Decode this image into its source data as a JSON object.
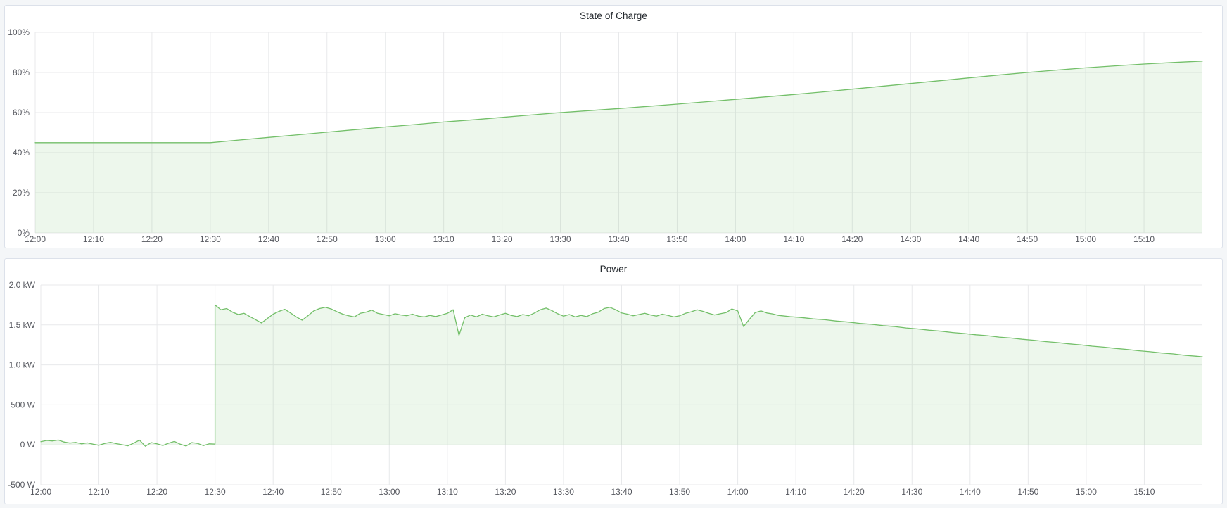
{
  "colors": {
    "page_bg": "#f4f6f8",
    "panel_bg": "#ffffff",
    "panel_border": "#dce1ea",
    "grid": "#e8e9eb",
    "tick_text": "#56585f",
    "title_text": "#24292e",
    "series_green": "#73bf69"
  },
  "panels": [
    {
      "title": "State of Charge"
    },
    {
      "title": "Power"
    }
  ],
  "chart_data": [
    {
      "type": "area",
      "title": "State of Charge",
      "legend": "none",
      "grid": true,
      "x_axis": {
        "start": "11:50",
        "end": "15:10",
        "tick_interval_min": 10,
        "tick_labels": [
          "12:00",
          "12:10",
          "12:20",
          "12:30",
          "12:40",
          "12:50",
          "13:00",
          "13:10",
          "13:20",
          "13:30",
          "13:40",
          "13:50",
          "14:00",
          "14:10",
          "14:20",
          "14:30",
          "14:40",
          "14:50",
          "15:00",
          "15:10"
        ]
      },
      "y_axis": {
        "min": 0,
        "max": 100,
        "unit": "%",
        "ticks": [
          {
            "v": 0,
            "label": "0%"
          },
          {
            "v": 20,
            "label": "20%"
          },
          {
            "v": 40,
            "label": "40%"
          },
          {
            "v": 60,
            "label": "60%"
          },
          {
            "v": 80,
            "label": "80%"
          },
          {
            "v": 100,
            "label": "100%"
          }
        ]
      },
      "series": [
        {
          "name": "State of Charge",
          "color": "#73bf69",
          "fill_opacity": 0.13,
          "points": [
            [
              0,
              45
            ],
            [
              5,
              45
            ],
            [
              10,
              45
            ],
            [
              15,
              45
            ],
            [
              20,
              45
            ],
            [
              25,
              45
            ],
            [
              30,
              45
            ],
            [
              35,
              46.3
            ],
            [
              40,
              47.6
            ],
            [
              45,
              48.9
            ],
            [
              50,
              50.2
            ],
            [
              55,
              51.5
            ],
            [
              60,
              52.8
            ],
            [
              65,
              54
            ],
            [
              70,
              55.3
            ],
            [
              75,
              56.4
            ],
            [
              80,
              57.6
            ],
            [
              85,
              58.8
            ],
            [
              90,
              60
            ],
            [
              95,
              61
            ],
            [
              100,
              62
            ],
            [
              105,
              63.1
            ],
            [
              110,
              64.2
            ],
            [
              115,
              65.4
            ],
            [
              120,
              66.6
            ],
            [
              125,
              67.8
            ],
            [
              130,
              69
            ],
            [
              135,
              70.3
            ],
            [
              140,
              71.7
            ],
            [
              145,
              73.1
            ],
            [
              150,
              74.5
            ],
            [
              155,
              75.9
            ],
            [
              160,
              77.3
            ],
            [
              165,
              78.7
            ],
            [
              170,
              80
            ],
            [
              175,
              81.2
            ],
            [
              180,
              82.3
            ],
            [
              185,
              83.3
            ],
            [
              190,
              84.2
            ],
            [
              195,
              85
            ],
            [
              200,
              85.7
            ]
          ]
        }
      ]
    },
    {
      "type": "area",
      "title": "Power",
      "legend": "none",
      "grid": true,
      "x_axis": {
        "start": "11:50",
        "end": "15:10",
        "tick_interval_min": 10,
        "tick_labels": [
          "12:00",
          "12:10",
          "12:20",
          "12:30",
          "12:40",
          "12:50",
          "13:00",
          "13:10",
          "13:20",
          "13:30",
          "13:40",
          "13:50",
          "14:00",
          "14:10",
          "14:20",
          "14:30",
          "14:40",
          "14:50",
          "15:00",
          "15:10"
        ]
      },
      "y_axis": {
        "min": -500,
        "max": 2000,
        "unit": "W",
        "ticks": [
          {
            "v": -500,
            "label": "-500 W"
          },
          {
            "v": 0,
            "label": "0 W"
          },
          {
            "v": 500,
            "label": "500 W"
          },
          {
            "v": 1000,
            "label": "1.0 kW"
          },
          {
            "v": 1500,
            "label": "1.5 kW"
          },
          {
            "v": 2000,
            "label": "2.0 kW"
          }
        ]
      },
      "series": [
        {
          "name": "Power",
          "color": "#73bf69",
          "fill_opacity": 0.13,
          "points": [
            [
              0,
              40
            ],
            [
              1,
              55
            ],
            [
              2,
              48
            ],
            [
              3,
              60
            ],
            [
              4,
              35
            ],
            [
              5,
              22
            ],
            [
              6,
              30
            ],
            [
              7,
              12
            ],
            [
              8,
              25
            ],
            [
              9,
              8
            ],
            [
              10,
              -5
            ],
            [
              11,
              18
            ],
            [
              12,
              32
            ],
            [
              13,
              15
            ],
            [
              14,
              2
            ],
            [
              15,
              -12
            ],
            [
              16,
              22
            ],
            [
              17,
              58
            ],
            [
              18,
              -18
            ],
            [
              19,
              28
            ],
            [
              20,
              12
            ],
            [
              21,
              -8
            ],
            [
              22,
              20
            ],
            [
              23,
              42
            ],
            [
              24,
              8
            ],
            [
              25,
              -15
            ],
            [
              26,
              28
            ],
            [
              27,
              18
            ],
            [
              28,
              -10
            ],
            [
              29,
              12
            ],
            [
              30,
              10
            ],
            [
              30,
              1750
            ],
            [
              31,
              1690
            ],
            [
              32,
              1705
            ],
            [
              33,
              1660
            ],
            [
              34,
              1630
            ],
            [
              35,
              1645
            ],
            [
              36,
              1605
            ],
            [
              37,
              1565
            ],
            [
              38,
              1525
            ],
            [
              39,
              1580
            ],
            [
              40,
              1635
            ],
            [
              41,
              1670
            ],
            [
              42,
              1695
            ],
            [
              43,
              1650
            ],
            [
              44,
              1600
            ],
            [
              45,
              1560
            ],
            [
              46,
              1615
            ],
            [
              47,
              1675
            ],
            [
              48,
              1705
            ],
            [
              49,
              1720
            ],
            [
              50,
              1700
            ],
            [
              51,
              1665
            ],
            [
              52,
              1635
            ],
            [
              53,
              1615
            ],
            [
              54,
              1600
            ],
            [
              55,
              1645
            ],
            [
              56,
              1660
            ],
            [
              57,
              1685
            ],
            [
              58,
              1645
            ],
            [
              59,
              1630
            ],
            [
              60,
              1615
            ],
            [
              61,
              1640
            ],
            [
              62,
              1625
            ],
            [
              63,
              1615
            ],
            [
              64,
              1635
            ],
            [
              65,
              1610
            ],
            [
              66,
              1600
            ],
            [
              67,
              1620
            ],
            [
              68,
              1605
            ],
            [
              69,
              1625
            ],
            [
              70,
              1645
            ],
            [
              71,
              1690
            ],
            [
              72,
              1370
            ],
            [
              73,
              1590
            ],
            [
              74,
              1625
            ],
            [
              75,
              1600
            ],
            [
              76,
              1635
            ],
            [
              77,
              1615
            ],
            [
              78,
              1600
            ],
            [
              79,
              1625
            ],
            [
              80,
              1645
            ],
            [
              81,
              1620
            ],
            [
              82,
              1605
            ],
            [
              83,
              1630
            ],
            [
              84,
              1615
            ],
            [
              85,
              1650
            ],
            [
              86,
              1690
            ],
            [
              87,
              1710
            ],
            [
              88,
              1680
            ],
            [
              89,
              1640
            ],
            [
              90,
              1610
            ],
            [
              91,
              1630
            ],
            [
              92,
              1600
            ],
            [
              93,
              1620
            ],
            [
              94,
              1605
            ],
            [
              95,
              1640
            ],
            [
              96,
              1660
            ],
            [
              97,
              1705
            ],
            [
              98,
              1720
            ],
            [
              99,
              1690
            ],
            [
              100,
              1650
            ],
            [
              101,
              1635
            ],
            [
              102,
              1615
            ],
            [
              103,
              1630
            ],
            [
              104,
              1645
            ],
            [
              105,
              1625
            ],
            [
              106,
              1610
            ],
            [
              107,
              1635
            ],
            [
              108,
              1620
            ],
            [
              109,
              1600
            ],
            [
              110,
              1615
            ],
            [
              111,
              1645
            ],
            [
              112,
              1665
            ],
            [
              113,
              1690
            ],
            [
              114,
              1670
            ],
            [
              115,
              1645
            ],
            [
              116,
              1625
            ],
            [
              117,
              1640
            ],
            [
              118,
              1655
            ],
            [
              119,
              1700
            ],
            [
              120,
              1675
            ],
            [
              121,
              1480
            ],
            [
              122,
              1570
            ],
            [
              123,
              1655
            ],
            [
              124,
              1675
            ],
            [
              125,
              1650
            ],
            [
              126,
              1638
            ],
            [
              127,
              1620
            ],
            [
              129,
              1604
            ],
            [
              131,
              1592
            ],
            [
              133,
              1576
            ],
            [
              135,
              1565
            ],
            [
              137,
              1548
            ],
            [
              139,
              1536
            ],
            [
              141,
              1519
            ],
            [
              143,
              1508
            ],
            [
              145,
              1491
            ],
            [
              147,
              1480
            ],
            [
              149,
              1462
            ],
            [
              151,
              1450
            ],
            [
              153,
              1434
            ],
            [
              155,
              1422
            ],
            [
              157,
              1405
            ],
            [
              159,
              1393
            ],
            [
              161,
              1377
            ],
            [
              163,
              1365
            ],
            [
              165,
              1348
            ],
            [
              167,
              1336
            ],
            [
              169,
              1320
            ],
            [
              171,
              1308
            ],
            [
              173,
              1291
            ],
            [
              175,
              1279
            ],
            [
              177,
              1263
            ],
            [
              179,
              1251
            ],
            [
              181,
              1234
            ],
            [
              183,
              1222
            ],
            [
              185,
              1206
            ],
            [
              187,
              1194
            ],
            [
              189,
              1177
            ],
            [
              191,
              1165
            ],
            [
              193,
              1149
            ],
            [
              195,
              1137
            ],
            [
              197,
              1120
            ],
            [
              199,
              1108
            ],
            [
              200,
              1100
            ]
          ]
        }
      ]
    }
  ]
}
